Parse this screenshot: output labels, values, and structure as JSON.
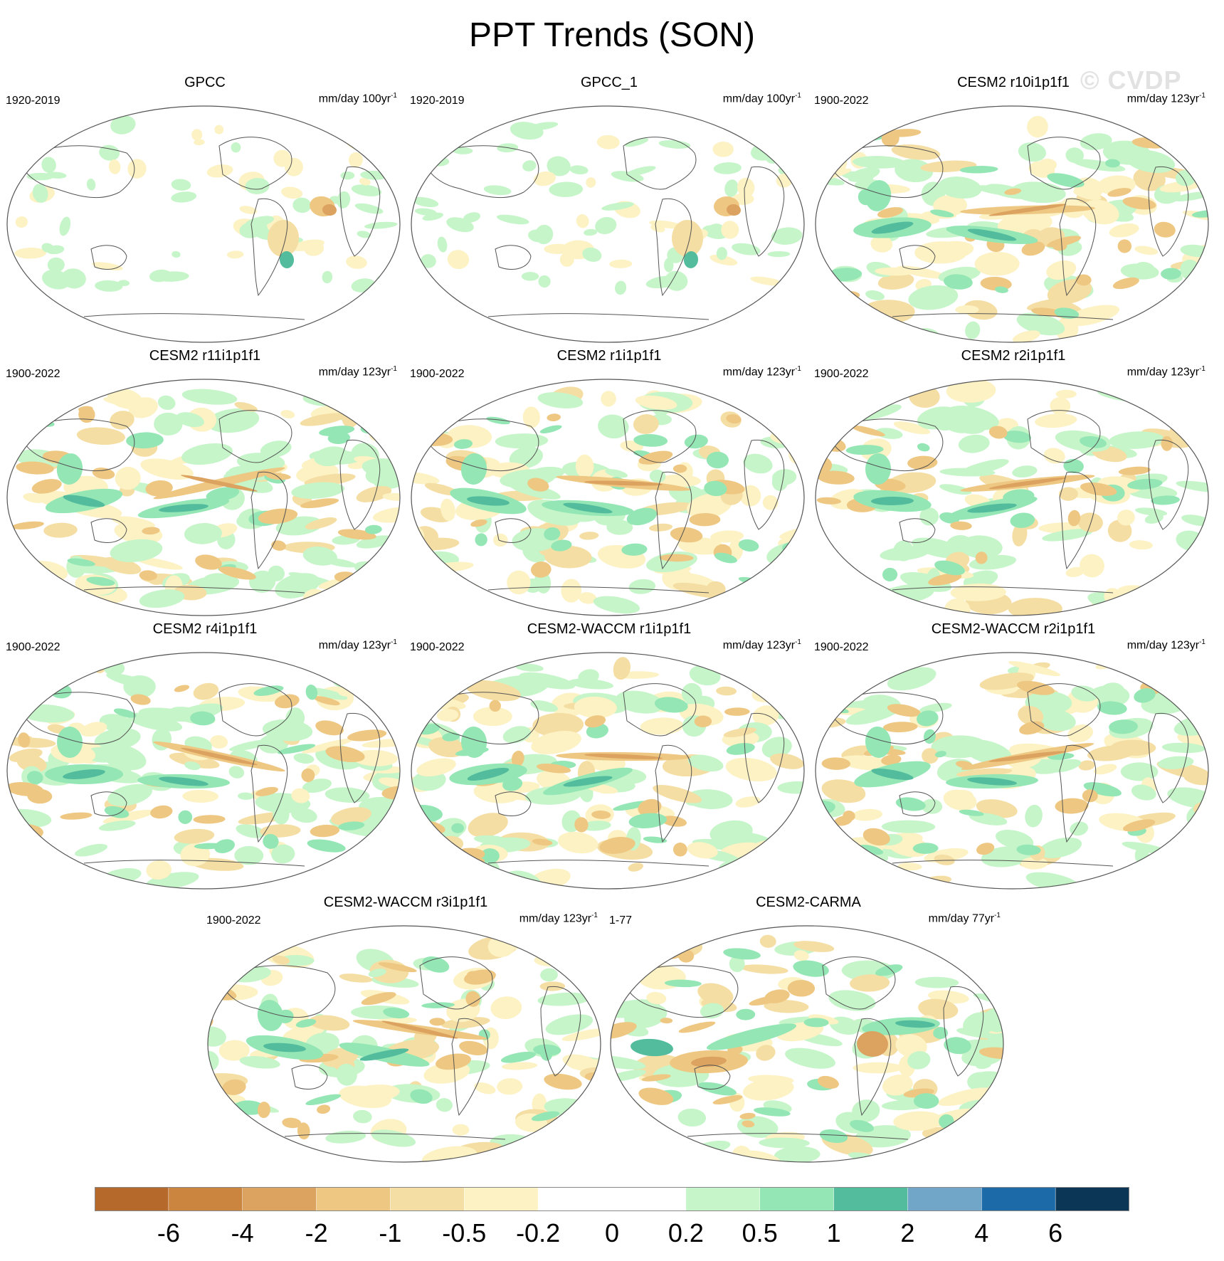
{
  "title": "PPT Trends (SON)",
  "watermark": "© CVDP",
  "panels": [
    {
      "title": "GPCC",
      "period": "1920-2019",
      "units": "mm/day 100yr",
      "units_exp": "-1",
      "pattern": "obs"
    },
    {
      "title": "GPCC_1",
      "period": "1920-2019",
      "units": "mm/day 100yr",
      "units_exp": "-1",
      "pattern": "obs"
    },
    {
      "title": "CESM2 r10i1p1f1",
      "period": "1900-2022",
      "units": "mm/day 123yr",
      "units_exp": "-1",
      "pattern": "model"
    },
    {
      "title": "CESM2 r11i1p1f1",
      "period": "1900-2022",
      "units": "mm/day 123yr",
      "units_exp": "-1",
      "pattern": "model"
    },
    {
      "title": "CESM2 r1i1p1f1",
      "period": "1900-2022",
      "units": "mm/day 123yr",
      "units_exp": "-1",
      "pattern": "model"
    },
    {
      "title": "CESM2 r2i1p1f1",
      "period": "1900-2022",
      "units": "mm/day 123yr",
      "units_exp": "-1",
      "pattern": "model"
    },
    {
      "title": "CESM2 r4i1p1f1",
      "period": "1900-2022",
      "units": "mm/day 123yr",
      "units_exp": "-1",
      "pattern": "model"
    },
    {
      "title": "CESM2-WACCM r1i1p1f1",
      "period": "1900-2022",
      "units": "mm/day 123yr",
      "units_exp": "-1",
      "pattern": "model"
    },
    {
      "title": "CESM2-WACCM r2i1p1f1",
      "period": "1900-2022",
      "units": "mm/day 123yr",
      "units_exp": "-1",
      "pattern": "model"
    },
    {
      "title": "CESM2-WACCM r3i1p1f1",
      "period": "1900-2022",
      "units": "mm/day 123yr",
      "units_exp": "-1",
      "pattern": "model"
    },
    {
      "title": "CESM2-CARMA",
      "period": "1-77",
      "units": "mm/day 77yr",
      "units_exp": "-1",
      "pattern": "carma"
    }
  ],
  "colorbar": {
    "labels": [
      "-6",
      "-4",
      "-2",
      "-1",
      "-0.5",
      "-0.2",
      "0",
      "0.2",
      "0.5",
      "1",
      "2",
      "4",
      "6"
    ],
    "colors": [
      "#b5692a",
      "#cc853f",
      "#dca25f",
      "#eec882",
      "#f5dea3",
      "#fcf2c4",
      "#ffffff",
      "#ffffff",
      "#c5f5c8",
      "#94e6b5",
      "#52bc9d",
      "#72a6c8",
      "#1c6aa8",
      "#0b3656"
    ]
  },
  "chart_data": {
    "type": "heatmap",
    "title": "PPT Trends (SON)",
    "variable": "Precipitation trend",
    "season": "SON",
    "projection": "Robinson (Pacific-centered)",
    "contour_levels": [
      -6,
      -4,
      -2,
      -1,
      -0.5,
      -0.2,
      0,
      0.2,
      0.5,
      1,
      2,
      4,
      6
    ],
    "units": "mm/day per record length"
  }
}
